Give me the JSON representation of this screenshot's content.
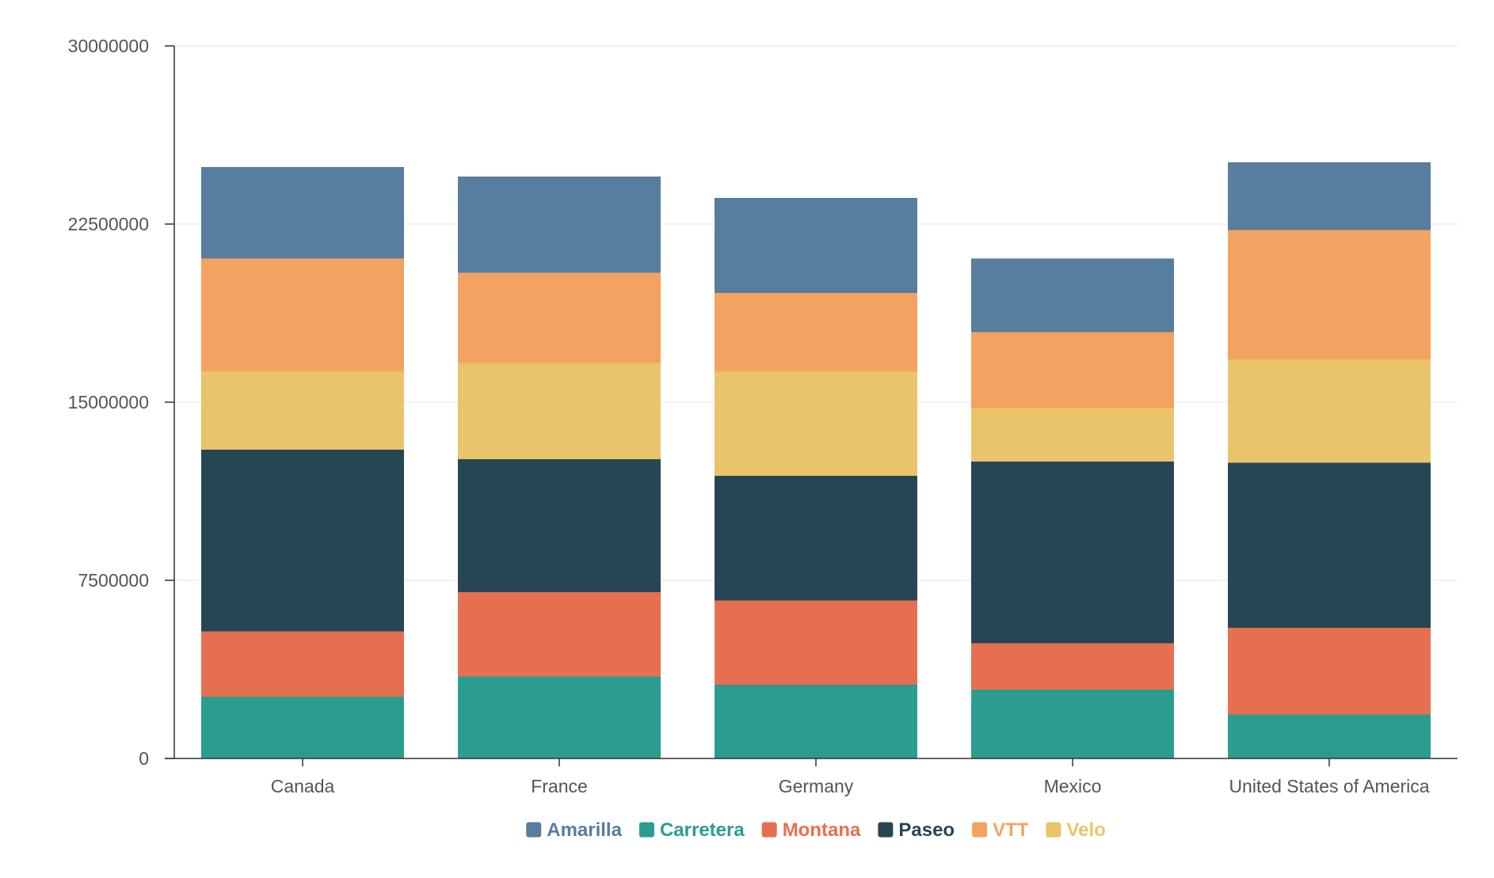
{
  "chart_data": {
    "type": "bar",
    "stacked": true,
    "categories": [
      "Canada",
      "France",
      "Germany",
      "Mexico",
      "United States of America"
    ],
    "series": [
      {
        "name": "Carretera",
        "color": "#2a9d8f",
        "values": [
          2600000,
          3450000,
          3100000,
          2900000,
          1850000
        ]
      },
      {
        "name": "Montana",
        "color": "#e76f51",
        "values": [
          2750000,
          3550000,
          3550000,
          1950000,
          3650000
        ]
      },
      {
        "name": "Paseo",
        "color": "#264653",
        "values": [
          7650000,
          5600000,
          5250000,
          7650000,
          6950000
        ]
      },
      {
        "name": "Velo",
        "color": "#e9c46a",
        "values": [
          3300000,
          4050000,
          4400000,
          2250000,
          4350000
        ]
      },
      {
        "name": "VTT",
        "color": "#f4a261",
        "values": [
          4750000,
          3800000,
          3300000,
          3200000,
          5450000
        ]
      },
      {
        "name": "Amarilla",
        "color": "#577d9f",
        "values": [
          3850000,
          4050000,
          4000000,
          3100000,
          2850000
        ]
      }
    ],
    "legend_order": [
      "Amarilla",
      "Carretera",
      "Montana",
      "Paseo",
      "VTT",
      "Velo"
    ],
    "y_ticks": [
      "0",
      "7500000",
      "15000000",
      "22500000",
      "30000000"
    ],
    "ylim": [
      0,
      30000000
    ],
    "grid": true,
    "legend_position": "bottom-center",
    "title": "",
    "xlabel": "",
    "ylabel": ""
  }
}
